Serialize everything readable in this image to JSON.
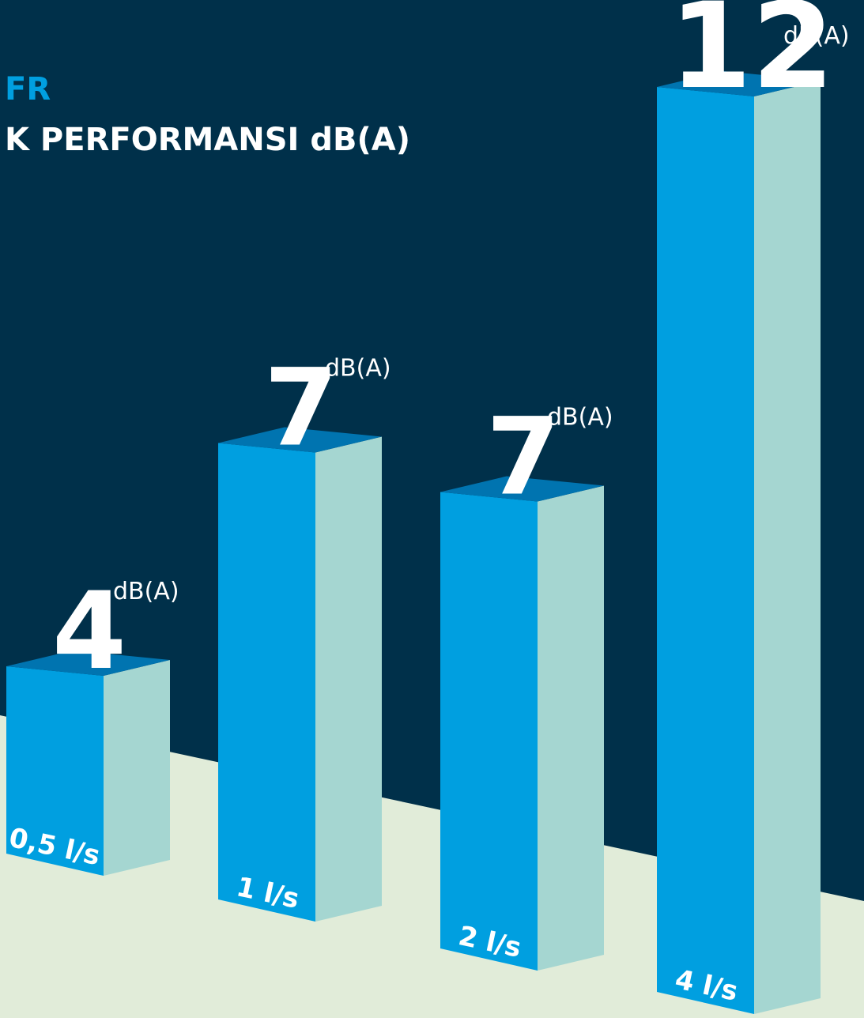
{
  "chart_data": {
    "type": "bar3d",
    "title": "FR",
    "subtitle": "K PERFORMANSI dB(A)",
    "unit": "dB(A)",
    "categories": [
      "0,5 l/s",
      "1 l/s",
      "2 l/s",
      "4 l/s"
    ],
    "values": [
      4,
      7,
      7,
      12
    ],
    "colors": {
      "front": "#009fe0",
      "side": "#a5d6d1",
      "top": "#0074b0"
    }
  }
}
